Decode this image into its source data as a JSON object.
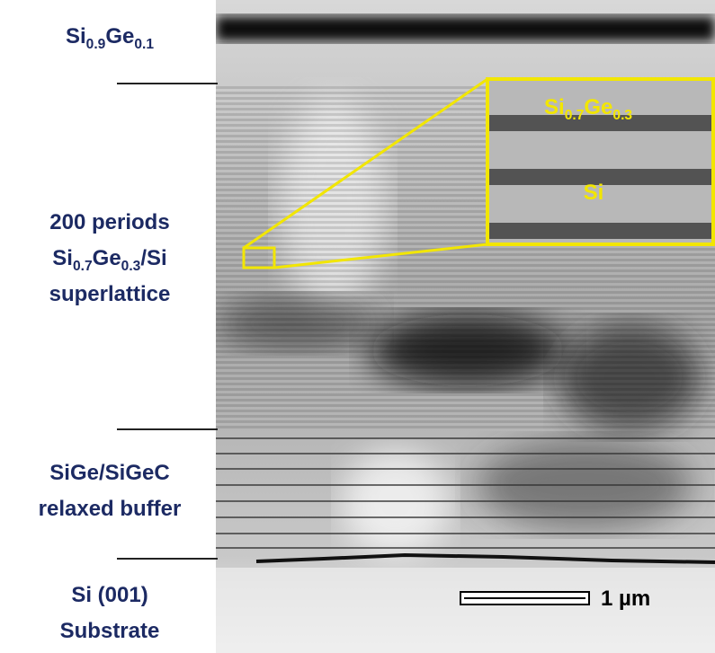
{
  "labels": [
    {
      "lines": [
        [
          {
            "t": "Si"
          },
          {
            "s": "0.9"
          },
          {
            "t": "Ge"
          },
          {
            "s": "0.1"
          }
        ]
      ]
    },
    {
      "lines": [
        [
          {
            "t": "200 periods"
          }
        ],
        [
          {
            "t": "Si"
          },
          {
            "s": "0.7"
          },
          {
            "t": "Ge"
          },
          {
            "s": "0.3"
          },
          {
            "t": "/Si"
          }
        ],
        [
          {
            "t": "superlattice"
          }
        ]
      ]
    },
    {
      "lines": [
        [
          {
            "t": "SiGe/SiGeC"
          }
        ],
        [
          {
            "t": "relaxed buffer"
          }
        ]
      ]
    },
    {
      "lines": [
        [
          {
            "t": "Si (001)"
          }
        ],
        [
          {
            "t": "Substrate"
          }
        ]
      ]
    }
  ],
  "inset": {
    "lines": [
      [
        {
          "t": "Si"
        },
        {
          "s": "0.7"
        },
        {
          "t": "Ge"
        },
        {
          "s": "0.3"
        }
      ],
      [
        {
          "t": "Si"
        }
      ]
    ]
  },
  "scale_bar": {
    "label": "1 µm"
  }
}
